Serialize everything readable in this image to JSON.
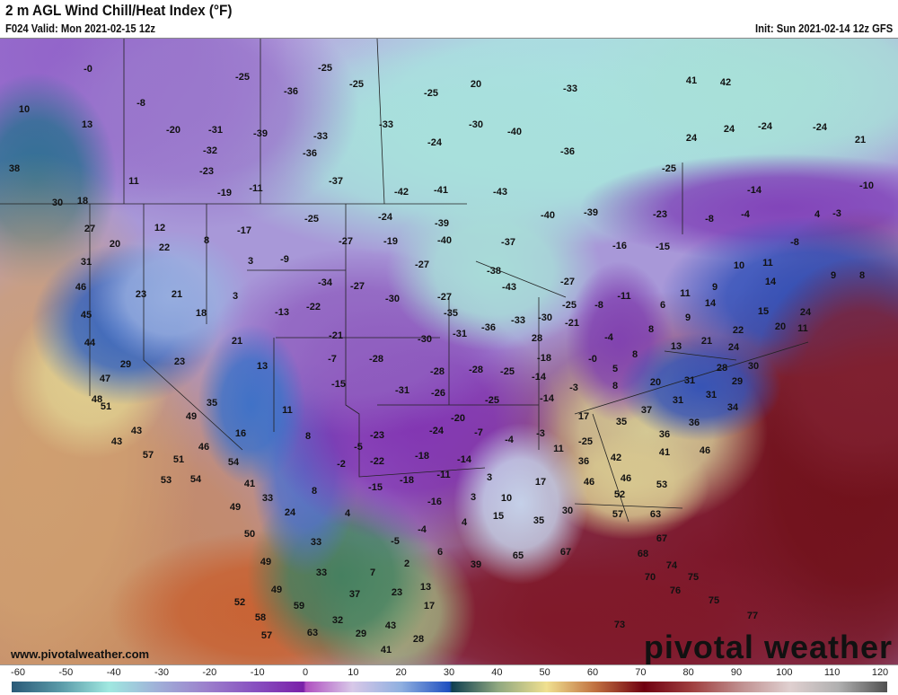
{
  "header": {
    "title": "2 m AGL Wind Chill/Heat Index (°F)",
    "valid": "F024 Valid: Mon 2021-02-15 12z",
    "init": "Init: Sun 2021-02-14 12z GFS"
  },
  "footer": {
    "site": "www.pivotalweather.com",
    "logo": "pivotal weather"
  },
  "colorbar": {
    "ticks": [
      "-60",
      "-50",
      "-40",
      "-30",
      "-20",
      "-10",
      "0",
      "10",
      "20",
      "30",
      "40",
      "50",
      "60",
      "70",
      "80",
      "90",
      "100",
      "110",
      "120"
    ],
    "range": [
      -60,
      120
    ],
    "stops": [
      {
        "v": -60,
        "c": "#2a5a78"
      },
      {
        "v": -50,
        "c": "#5a9aa8"
      },
      {
        "v": -40,
        "c": "#a0e8e0"
      },
      {
        "v": -30,
        "c": "#a0b0d8"
      },
      {
        "v": -20,
        "c": "#9c80cc"
      },
      {
        "v": -10,
        "c": "#8850c0"
      },
      {
        "v": 0,
        "c": "#7a20a8"
      },
      {
        "v": 0.5,
        "c": "#b050c0"
      },
      {
        "v": 10,
        "c": "#d8c8e8"
      },
      {
        "v": 20,
        "c": "#90b0e0"
      },
      {
        "v": 30,
        "c": "#2050c0"
      },
      {
        "v": 30.5,
        "c": "#104050"
      },
      {
        "v": 40,
        "c": "#90a880"
      },
      {
        "v": 50,
        "c": "#f0e090"
      },
      {
        "v": 60,
        "c": "#c07040"
      },
      {
        "v": 70,
        "c": "#700010"
      },
      {
        "v": 80,
        "c": "#a04040"
      },
      {
        "v": 90,
        "c": "#c09090"
      },
      {
        "v": 100,
        "c": "#e0d0d0"
      },
      {
        "v": 110,
        "c": "#b0b0b0"
      },
      {
        "v": 120,
        "c": "#505050"
      }
    ]
  },
  "map": {
    "units": "°F",
    "values": [
      "-0",
      "10",
      "13",
      "-8",
      "-20",
      "-31",
      "-32",
      "-23",
      "-39",
      "-25",
      "-25",
      "-36",
      "-25",
      "-25",
      "20",
      "-33",
      "-33",
      "-24",
      "-30",
      "-40",
      "-36",
      "-33",
      "-36",
      "-37",
      "-42",
      "-41",
      "-43",
      "41",
      "42",
      "24",
      "24",
      "-24",
      "-24",
      "21",
      "-25",
      "-14",
      "-10",
      "11",
      "-19",
      "-11",
      "18",
      "30",
      "38",
      "27",
      "20",
      "12",
      "22",
      "8",
      "-17",
      "-25",
      "-24",
      "-39",
      "-27",
      "-19",
      "-40",
      "-37",
      "-40",
      "-39",
      "-23",
      "-8",
      "-4",
      "4",
      "-3",
      "-8",
      "31",
      "46",
      "45",
      "23",
      "21",
      "18",
      "3",
      "3",
      "-9",
      "-34",
      "-27",
      "-27",
      "-38",
      "-43",
      "-30",
      "-27",
      "-27",
      "-16",
      "-15",
      "10",
      "11",
      "9",
      "8",
      "14",
      "11",
      "9",
      "14",
      "15",
      "20",
      "11",
      "24",
      "44",
      "47",
      "48",
      "29",
      "23",
      "21",
      "-13",
      "-22",
      "-21",
      "-35",
      "-36",
      "-33",
      "-30",
      "-21",
      "-25",
      "-8",
      "-11",
      "6",
      "9",
      "8",
      "-4",
      "28",
      "-30",
      "-31",
      "51",
      "43",
      "35",
      "49",
      "16",
      "13",
      "11",
      "-7",
      "-15",
      "-28",
      "-28",
      "-28",
      "-25",
      "-14",
      "-18",
      "-0",
      "5",
      "8",
      "13",
      "21",
      "22",
      "24",
      "30",
      "28",
      "29",
      "31",
      "20",
      "31",
      "31",
      "34",
      "-31",
      "-26",
      "-25",
      "-14",
      "-3",
      "8",
      "43",
      "57",
      "51",
      "46",
      "54",
      "41",
      "53",
      "54",
      "33",
      "8",
      "-5",
      "-23",
      "-20",
      "-24",
      "-7",
      "-4",
      "-3",
      "17",
      "35",
      "37",
      "36",
      "36",
      "46",
      "-22",
      "-2",
      "-18",
      "-14",
      "-25",
      "11",
      "36",
      "42",
      "41",
      "-18",
      "-11",
      "-15",
      "3",
      "17",
      "46",
      "46",
      "53",
      "8",
      "49",
      "24",
      "-16",
      "3",
      "10",
      "52",
      "4",
      "15",
      "30",
      "57",
      "63",
      "35",
      "50",
      "33",
      "-5",
      "-4",
      "4",
      "49",
      "33",
      "7",
      "2",
      "6",
      "39",
      "65",
      "67",
      "67",
      "68",
      "74",
      "75",
      "70",
      "76",
      "37",
      "23",
      "13",
      "49",
      "52",
      "59",
      "58",
      "32",
      "43",
      "57",
      "63",
      "29",
      "28",
      "17",
      "41",
      "75",
      "77",
      "73"
    ]
  }
}
